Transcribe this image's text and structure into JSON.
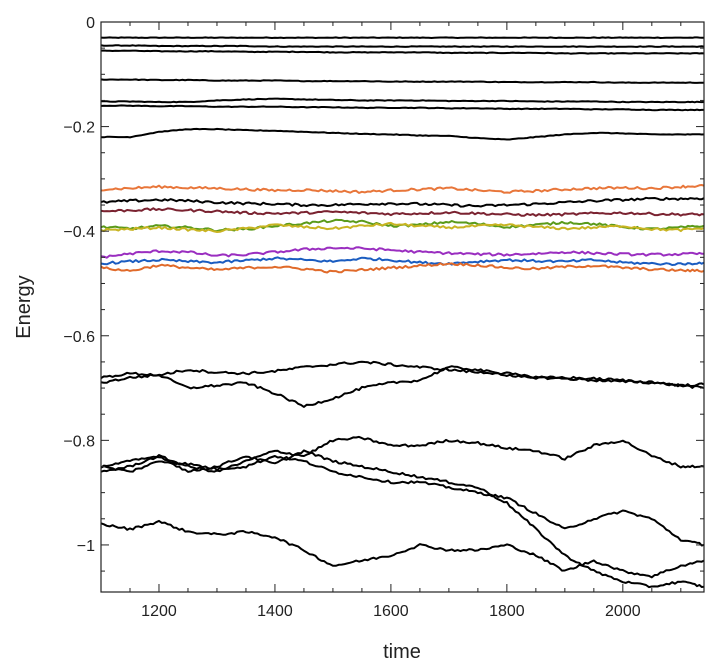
{
  "chart_data": {
    "type": "line",
    "title": "",
    "xlabel": "time",
    "ylabel": "Energy",
    "xlim": [
      1100,
      2140
    ],
    "ylim": [
      -1.09,
      0.0
    ],
    "xticks": [
      1200,
      1400,
      1600,
      1800,
      2000
    ],
    "xtick_labels": [
      "1200",
      "1400",
      "1600",
      "1800",
      "2000"
    ],
    "yticks": [
      0,
      -0.2,
      -0.4,
      -0.6,
      -0.8,
      -1
    ],
    "ytick_labels": [
      "0",
      "−0.2",
      "−0.4",
      "−0.6",
      "−0.8",
      "−1"
    ],
    "grid": false,
    "legend": false,
    "x": [
      1100,
      1150,
      1200,
      1250,
      1300,
      1350,
      1400,
      1450,
      1500,
      1550,
      1600,
      1650,
      1700,
      1750,
      1800,
      1850,
      1900,
      1950,
      2000,
      2050,
      2100,
      2140
    ],
    "series": [
      {
        "color": "#000000",
        "values": [
          -0.03,
          -0.03,
          -0.03,
          -0.03,
          -0.03,
          -0.03,
          -0.03,
          -0.03,
          -0.03,
          -0.03,
          -0.03,
          -0.03,
          -0.03,
          -0.03,
          -0.03,
          -0.03,
          -0.03,
          -0.03,
          -0.03,
          -0.03,
          -0.03,
          -0.03
        ]
      },
      {
        "color": "#000000",
        "values": [
          -0.045,
          -0.045,
          -0.046,
          -0.046,
          -0.046,
          -0.046,
          -0.047,
          -0.047,
          -0.047,
          -0.047,
          -0.047,
          -0.047,
          -0.047,
          -0.047,
          -0.047,
          -0.047,
          -0.047,
          -0.047,
          -0.047,
          -0.047,
          -0.047,
          -0.047
        ]
      },
      {
        "color": "#000000",
        "values": [
          -0.055,
          -0.055,
          -0.056,
          -0.056,
          -0.056,
          -0.057,
          -0.057,
          -0.057,
          -0.058,
          -0.058,
          -0.058,
          -0.058,
          -0.059,
          -0.059,
          -0.059,
          -0.059,
          -0.06,
          -0.06,
          -0.06,
          -0.06,
          -0.06,
          -0.06
        ]
      },
      {
        "color": "#000000",
        "values": [
          -0.11,
          -0.11,
          -0.111,
          -0.111,
          -0.112,
          -0.112,
          -0.112,
          -0.113,
          -0.113,
          -0.113,
          -0.114,
          -0.114,
          -0.114,
          -0.114,
          -0.115,
          -0.115,
          -0.115,
          -0.115,
          -0.116,
          -0.116,
          -0.116,
          -0.116
        ]
      },
      {
        "color": "#000000",
        "values": [
          -0.152,
          -0.152,
          -0.153,
          -0.153,
          -0.15,
          -0.148,
          -0.147,
          -0.148,
          -0.149,
          -0.15,
          -0.15,
          -0.15,
          -0.151,
          -0.151,
          -0.151,
          -0.152,
          -0.152,
          -0.152,
          -0.153,
          -0.153,
          -0.153,
          -0.153
        ]
      },
      {
        "color": "#000000",
        "values": [
          -0.16,
          -0.16,
          -0.161,
          -0.161,
          -0.162,
          -0.162,
          -0.162,
          -0.163,
          -0.163,
          -0.164,
          -0.164,
          -0.164,
          -0.165,
          -0.165,
          -0.166,
          -0.166,
          -0.166,
          -0.167,
          -0.167,
          -0.168,
          -0.168,
          -0.168
        ]
      },
      {
        "color": "#000000",
        "values": [
          -0.22,
          -0.22,
          -0.21,
          -0.205,
          -0.205,
          -0.207,
          -0.208,
          -0.21,
          -0.212,
          -0.214,
          -0.215,
          -0.217,
          -0.218,
          -0.222,
          -0.225,
          -0.22,
          -0.215,
          -0.212,
          -0.213,
          -0.215,
          -0.215,
          -0.215
        ]
      },
      {
        "color": "#e8763a",
        "values": [
          -0.32,
          -0.318,
          -0.315,
          -0.317,
          -0.318,
          -0.32,
          -0.322,
          -0.321,
          -0.323,
          -0.325,
          -0.322,
          -0.32,
          -0.318,
          -0.322,
          -0.325,
          -0.323,
          -0.32,
          -0.318,
          -0.317,
          -0.318,
          -0.315,
          -0.313
        ]
      },
      {
        "color": "#000000",
        "values": [
          -0.345,
          -0.342,
          -0.34,
          -0.342,
          -0.345,
          -0.347,
          -0.348,
          -0.35,
          -0.35,
          -0.348,
          -0.347,
          -0.348,
          -0.35,
          -0.352,
          -0.35,
          -0.348,
          -0.345,
          -0.342,
          -0.34,
          -0.338,
          -0.338,
          -0.337
        ]
      },
      {
        "color": "#7a2230",
        "values": [
          -0.362,
          -0.36,
          -0.358,
          -0.36,
          -0.362,
          -0.365,
          -0.366,
          -0.365,
          -0.363,
          -0.365,
          -0.367,
          -0.366,
          -0.364,
          -0.366,
          -0.368,
          -0.369,
          -0.368,
          -0.366,
          -0.365,
          -0.367,
          -0.368,
          -0.368
        ]
      },
      {
        "color": "#5a9a1a",
        "values": [
          -0.392,
          -0.395,
          -0.39,
          -0.393,
          -0.398,
          -0.396,
          -0.39,
          -0.385,
          -0.38,
          -0.382,
          -0.39,
          -0.388,
          -0.382,
          -0.386,
          -0.392,
          -0.388,
          -0.383,
          -0.386,
          -0.392,
          -0.396,
          -0.393,
          -0.39
        ]
      },
      {
        "color": "#c8b422",
        "values": [
          -0.398,
          -0.396,
          -0.393,
          -0.397,
          -0.4,
          -0.395,
          -0.388,
          -0.392,
          -0.395,
          -0.39,
          -0.386,
          -0.39,
          -0.393,
          -0.39,
          -0.388,
          -0.392,
          -0.395,
          -0.393,
          -0.39,
          -0.396,
          -0.398,
          -0.394
        ]
      },
      {
        "color": "#9a2ec0",
        "values": [
          -0.45,
          -0.443,
          -0.438,
          -0.44,
          -0.447,
          -0.445,
          -0.44,
          -0.435,
          -0.432,
          -0.433,
          -0.436,
          -0.44,
          -0.442,
          -0.444,
          -0.445,
          -0.443,
          -0.44,
          -0.442,
          -0.444,
          -0.445,
          -0.444,
          -0.443
        ]
      },
      {
        "color": "#1a5cc0",
        "values": [
          -0.462,
          -0.458,
          -0.455,
          -0.458,
          -0.46,
          -0.456,
          -0.452,
          -0.455,
          -0.458,
          -0.452,
          -0.455,
          -0.46,
          -0.462,
          -0.458,
          -0.455,
          -0.457,
          -0.458,
          -0.455,
          -0.46,
          -0.462,
          -0.463,
          -0.46
        ]
      },
      {
        "color": "#e06a2a",
        "values": [
          -0.47,
          -0.476,
          -0.465,
          -0.47,
          -0.474,
          -0.47,
          -0.468,
          -0.472,
          -0.478,
          -0.474,
          -0.47,
          -0.466,
          -0.462,
          -0.465,
          -0.47,
          -0.472,
          -0.468,
          -0.466,
          -0.47,
          -0.473,
          -0.475,
          -0.476
        ]
      },
      {
        "color": "#000000",
        "values": [
          -0.69,
          -0.68,
          -0.675,
          -0.665,
          -0.67,
          -0.672,
          -0.668,
          -0.66,
          -0.655,
          -0.65,
          -0.655,
          -0.66,
          -0.665,
          -0.67,
          -0.672,
          -0.68,
          -0.682,
          -0.685,
          -0.688,
          -0.688,
          -0.695,
          -0.693
        ]
      },
      {
        "color": "#000000",
        "values": [
          -0.68,
          -0.672,
          -0.675,
          -0.7,
          -0.695,
          -0.69,
          -0.71,
          -0.735,
          -0.72,
          -0.7,
          -0.69,
          -0.685,
          -0.66,
          -0.665,
          -0.675,
          -0.68,
          -0.68,
          -0.682,
          -0.685,
          -0.69,
          -0.695,
          -0.7
        ]
      },
      {
        "color": "#000000",
        "values": [
          -0.86,
          -0.85,
          -0.83,
          -0.85,
          -0.86,
          -0.84,
          -0.82,
          -0.83,
          -0.8,
          -0.795,
          -0.81,
          -0.81,
          -0.8,
          -0.805,
          -0.815,
          -0.82,
          -0.835,
          -0.81,
          -0.8,
          -0.83,
          -0.85,
          -0.85
        ]
      },
      {
        "color": "#000000",
        "values": [
          -0.85,
          -0.86,
          -0.84,
          -0.845,
          -0.855,
          -0.85,
          -0.83,
          -0.84,
          -0.86,
          -0.87,
          -0.88,
          -0.88,
          -0.89,
          -0.9,
          -0.91,
          -0.94,
          -0.97,
          -0.95,
          -0.935,
          -0.95,
          -0.99,
          -1.0
        ]
      },
      {
        "color": "#000000",
        "values": [
          -0.85,
          -0.84,
          -0.83,
          -0.86,
          -0.85,
          -0.83,
          -0.845,
          -0.82,
          -0.84,
          -0.85,
          -0.86,
          -0.87,
          -0.88,
          -0.89,
          -0.92,
          -0.97,
          -1.02,
          -1.05,
          -1.07,
          -1.08,
          -1.07,
          -1.08
        ]
      },
      {
        "color": "#000000",
        "values": [
          -0.96,
          -0.97,
          -0.955,
          -0.975,
          -0.98,
          -0.975,
          -0.985,
          -1.01,
          -1.04,
          -1.03,
          -1.02,
          -1.0,
          -1.01,
          -1.01,
          -1.0,
          -1.02,
          -1.05,
          -1.03,
          -1.05,
          -1.06,
          -1.04,
          -1.03
        ]
      }
    ]
  }
}
